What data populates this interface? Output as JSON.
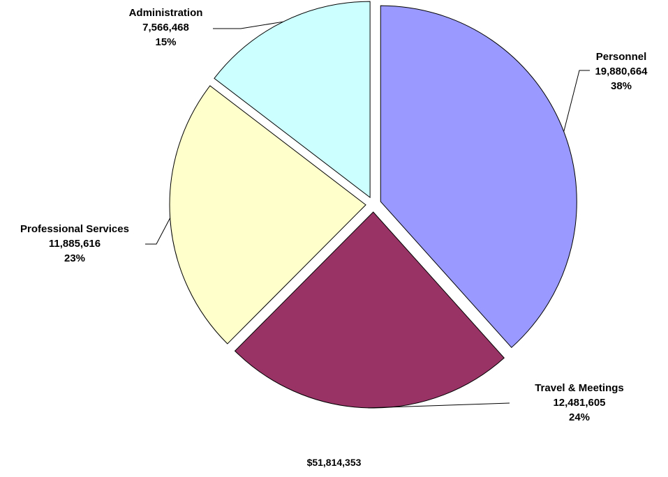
{
  "chart_data": {
    "type": "pie",
    "slices": [
      {
        "label": "Personnel",
        "value": 19880664,
        "value_text": "19,880,664",
        "percent": "38%",
        "color": "#9999ff"
      },
      {
        "label": "Travel & Meetings",
        "value": 12481605,
        "value_text": "12,481,605",
        "percent": "24%",
        "color": "#993366"
      },
      {
        "label": "Professional Services",
        "value": 11885616,
        "value_text": "11,885,616",
        "percent": "23%",
        "color": "#ffffcc"
      },
      {
        "label": "Administration",
        "value": 7566468,
        "value_text": "7,566,468",
        "percent": "15%",
        "color": "#ccffff"
      }
    ],
    "exploded": true,
    "total": "$51,814,353"
  }
}
